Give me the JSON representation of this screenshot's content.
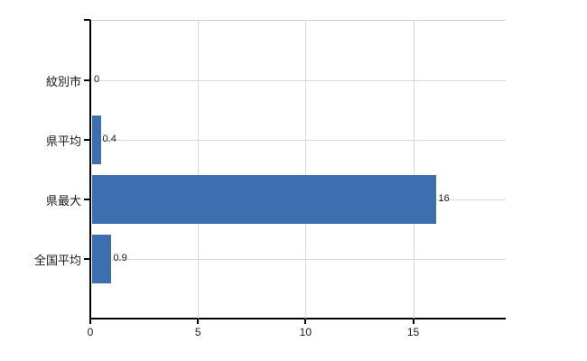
{
  "chart": {
    "background_color": "#ffffff",
    "bar_color": "#3d6eaf",
    "axis_color": "#000000",
    "gridline_color": "#d9d9d9",
    "top_border_color": "#cfcfcf",
    "text_color": "#1a1a1a"
  },
  "chart_data": {
    "type": "bar",
    "orientation": "horizontal",
    "title": "",
    "xlabel": "",
    "ylabel": "",
    "categories": [
      "紋別市",
      "県平均",
      "県最大",
      "全国平均"
    ],
    "values": [
      0,
      0.4,
      16,
      0.9
    ],
    "value_labels": [
      "0",
      "0.4",
      "16",
      "0.9"
    ],
    "x_ticks": [
      0,
      5,
      10,
      15
    ],
    "x_tick_labels": [
      "0",
      "5",
      "10",
      "15"
    ],
    "xlim": [
      0,
      19.3
    ],
    "grid": true,
    "legend": false
  }
}
